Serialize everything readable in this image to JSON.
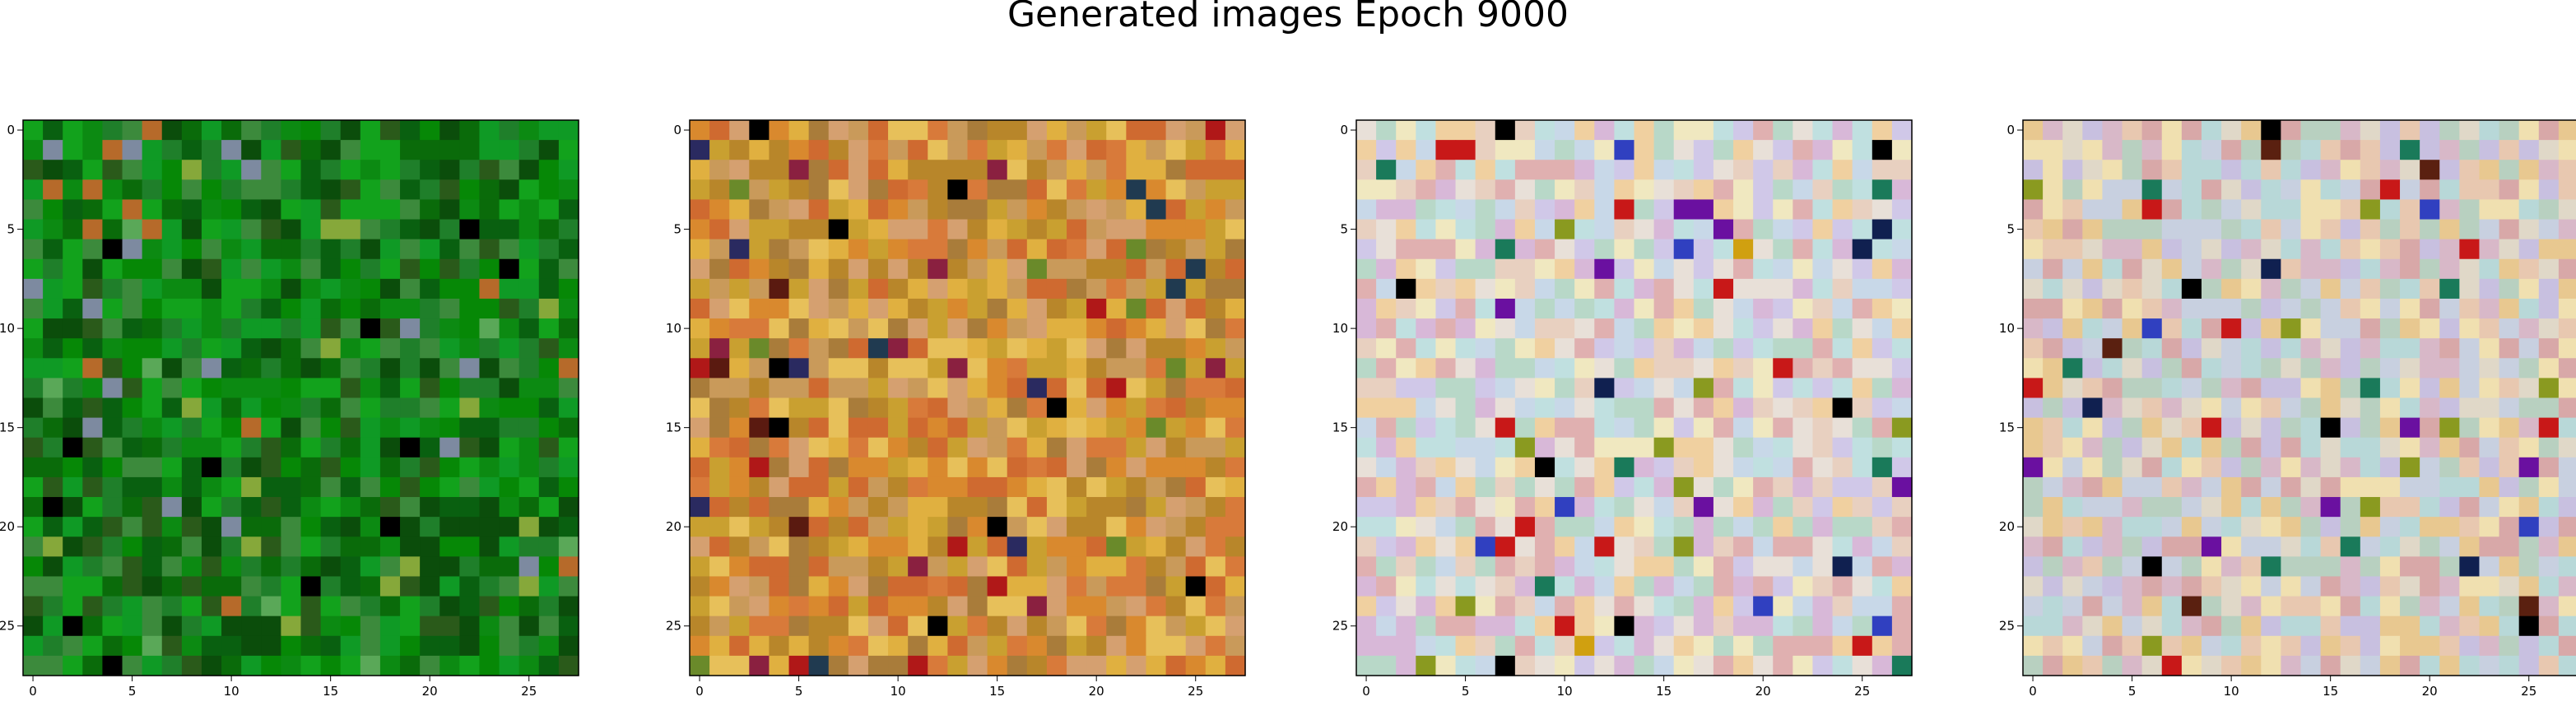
{
  "figure": {
    "title": "Generated images Epoch 9000"
  },
  "chart_data": [
    {
      "type": "heatmap",
      "grid_size": [
        28,
        28
      ],
      "xticks": [
        "0",
        "5",
        "10",
        "15",
        "20",
        "25"
      ],
      "yticks": [
        "0",
        "5",
        "10",
        "15",
        "20",
        "25"
      ],
      "palette": [
        "#0a6b0a",
        "#0c8a12",
        "#12a21c",
        "#096010",
        "#1f7f2a",
        "#2a5a1a",
        "#0b4d0b",
        "#3c8a3c",
        "#068806",
        "#0f9a25"
      ],
      "accent": [
        "#000000",
        "#86a83a",
        "#b66a2a",
        "#7d8aa0",
        "#5aa858"
      ]
    },
    {
      "type": "heatmap",
      "grid_size": [
        28,
        28
      ],
      "xticks": [
        "0",
        "5",
        "10",
        "15",
        "20",
        "25"
      ],
      "yticks": [
        "0",
        "5",
        "10",
        "15",
        "20",
        "25"
      ],
      "palette": [
        "#d9892e",
        "#c9a030",
        "#e0b040",
        "#d87a3a",
        "#b8862a",
        "#c99a5a",
        "#e7c05a",
        "#a97c3a",
        "#d5a070",
        "#cf6a30"
      ],
      "accent": [
        "#000000",
        "#5a1a10",
        "#8a2040",
        "#203a50",
        "#6a8a2a",
        "#b01818",
        "#2a2a60"
      ]
    },
    {
      "type": "heatmap",
      "grid_size": [
        28,
        28
      ],
      "xticks": [
        "0",
        "5",
        "10",
        "15",
        "20",
        "25"
      ],
      "yticks": [
        "0",
        "5",
        "10",
        "15",
        "20",
        "25"
      ],
      "palette": [
        "#e8d0c0",
        "#d8b8d8",
        "#c8d8e8",
        "#f0e8c0",
        "#e0b0b0",
        "#b8d8c8",
        "#f0d0a0",
        "#d0c8e8",
        "#e8e0d8",
        "#c0e0e0"
      ],
      "accent": [
        "#000000",
        "#102050",
        "#c81818",
        "#1a7a5a",
        "#3040c0",
        "#8a9a20",
        "#6a10a0",
        "#d0a010"
      ]
    },
    {
      "type": "heatmap",
      "grid_size": [
        28,
        28
      ],
      "xticks": [
        "0",
        "5",
        "10",
        "15",
        "20",
        "25"
      ],
      "yticks": [
        "0",
        "5",
        "10",
        "15",
        "20",
        "25"
      ],
      "palette": [
        "#e8c8b0",
        "#d8b8c8",
        "#c8d0e0",
        "#f0e0b0",
        "#d8a8a8",
        "#b8d0c0",
        "#e8c890",
        "#c8c0e0",
        "#e0d8c8",
        "#b8d8d8"
      ],
      "accent": [
        "#000000",
        "#102050",
        "#c81818",
        "#1a7a5a",
        "#3040c0",
        "#8a9a20",
        "#6a10a0",
        "#5a2010"
      ]
    }
  ]
}
